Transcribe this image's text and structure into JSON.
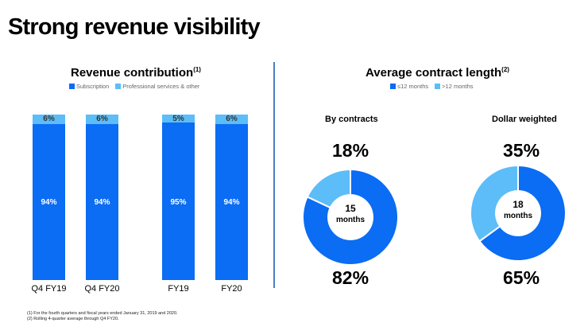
{
  "title": "Strong revenue visibility",
  "colors": {
    "primary": "#0b6cf4",
    "secondary": "#5cbdf8",
    "divider": "#4a7fc0"
  },
  "chart_data": [
    {
      "type": "bar",
      "stacked": true,
      "title": "Revenue contribution",
      "title_note": "(1)",
      "legend": [
        "Subscription",
        "Professional services & other"
      ],
      "legend_placement": "top-center",
      "categories": [
        "Q4 FY19",
        "Q4 FY20",
        "FY19",
        "FY20"
      ],
      "series": [
        {
          "name": "Subscription",
          "values": [
            94,
            94,
            95,
            94
          ],
          "labels": [
            "94%",
            "94%",
            "95%",
            "94%"
          ]
        },
        {
          "name": "Professional services & other",
          "values": [
            6,
            6,
            5,
            6
          ],
          "labels": [
            "6%",
            "6%",
            "5%",
            "6%"
          ]
        }
      ],
      "ylim": [
        0,
        100
      ]
    },
    {
      "type": "pie",
      "donut": true,
      "title": "Average contract length",
      "title_note": "(2)",
      "legend": [
        "≤12 months",
        ">12 months"
      ],
      "legend_placement": "top-center",
      "charts": [
        {
          "subtitle": "By contracts",
          "values": [
            82,
            18
          ],
          "labels": [
            "82%",
            "18%"
          ],
          "center_value": "15",
          "center_unit": "months"
        },
        {
          "subtitle": "Dollar weighted",
          "values": [
            65,
            35
          ],
          "labels": [
            "65%",
            "35%"
          ],
          "center_value": "18",
          "center_unit": "months"
        }
      ]
    }
  ],
  "footnotes": [
    "(1) For the fourth quarters and fiscal years ended January 31, 2019 and 2020.",
    "(2) Rolling 4-quarter average through Q4 FY20."
  ]
}
